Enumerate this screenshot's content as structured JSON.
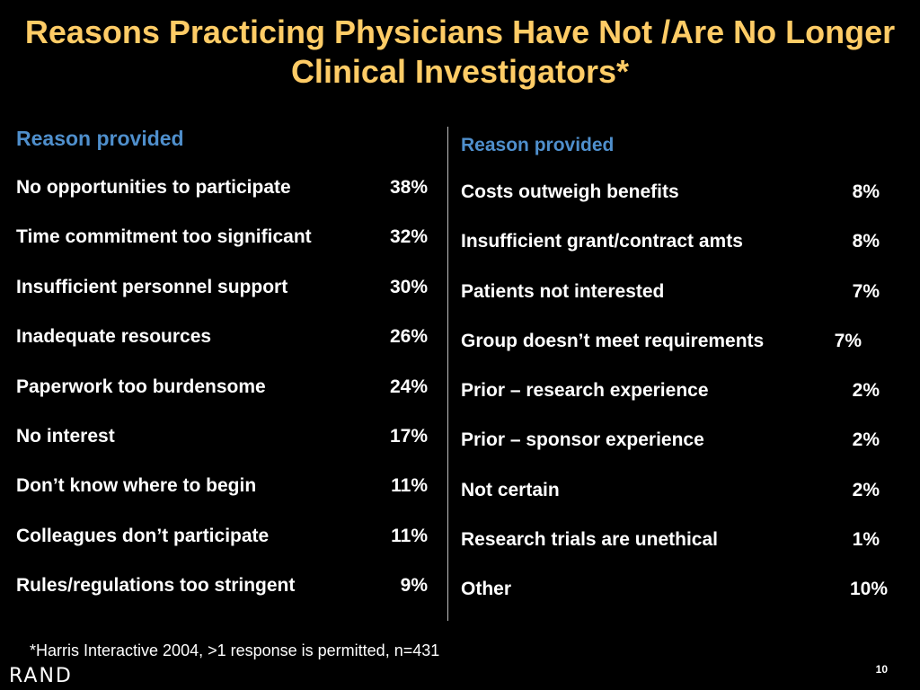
{
  "slide": {
    "title": "Reasons Practicing Physicians Have Not /Are No Longer Clinical Investigators*",
    "footnote": "*Harris Interactive 2004, >1 response is permitted, n=431",
    "logo": "RAND",
    "page_number": "10",
    "colors": {
      "background": "#000000",
      "title": "#ffcc66",
      "heading": "#4f8fcc",
      "text": "#ffffff"
    }
  },
  "left": {
    "heading": "Reason provided",
    "rows": [
      {
        "label": "No opportunities to participate",
        "pct": "38%"
      },
      {
        "label": "Time commitment too significant",
        "pct": "32%"
      },
      {
        "label": "Insufficient personnel support",
        "pct": "30%"
      },
      {
        "label": "Inadequate resources",
        "pct": "26%"
      },
      {
        "label": "Paperwork too burdensome",
        "pct": "24%"
      },
      {
        "label": "No interest",
        "pct": "17%"
      },
      {
        "label": "Don’t know where to begin",
        "pct": "11%"
      },
      {
        "label": "Colleagues don’t participate",
        "pct": "11%"
      },
      {
        "label": "Rules/regulations too stringent",
        "pct": "9%"
      }
    ]
  },
  "right": {
    "heading": "Reason provided",
    "rows": [
      {
        "label": "Costs outweigh benefits",
        "pct": "8%"
      },
      {
        "label": "Insufficient grant/contract amts",
        "pct": "8%"
      },
      {
        "label": "Patients not interested",
        "pct": "7%"
      },
      {
        "label": "Group doesn’t meet requirements",
        "pct": "7%"
      },
      {
        "label": "Prior – research experience",
        "pct": "2%"
      },
      {
        "label": "Prior – sponsor experience",
        "pct": "2%"
      },
      {
        "label": "Not certain",
        "pct": "2%"
      },
      {
        "label": "Research trials are unethical",
        "pct": "1%"
      },
      {
        "label": "Other",
        "pct": "10%"
      }
    ]
  }
}
